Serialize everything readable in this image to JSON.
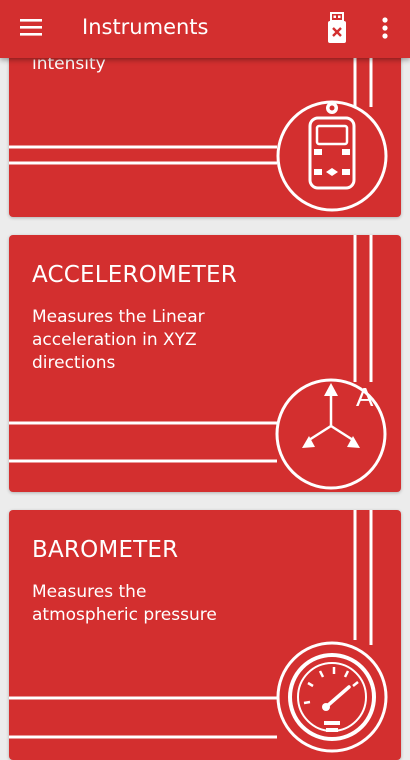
{
  "app_bar": {
    "title": "Instruments",
    "menu_icon": "hamburger-menu-icon",
    "usb_icon": "usb-disconnected-icon",
    "more_icon": "more-vert-icon"
  },
  "cards": [
    {
      "title": "",
      "description": "intensity",
      "icon": "lux-meter-device-icon"
    },
    {
      "title": "ACCELEROMETER",
      "description": "Measures the Linear acceleration in XYZ directions",
      "icon": "axes-a-icon",
      "icon_letter": "A"
    },
    {
      "title": "BAROMETER",
      "description": "Measures the atmospheric pressure",
      "icon": "pressure-gauge-icon"
    }
  ],
  "colors": {
    "primary": "#d32f2f",
    "background": "#ececec",
    "foreground": "#ffffff"
  }
}
